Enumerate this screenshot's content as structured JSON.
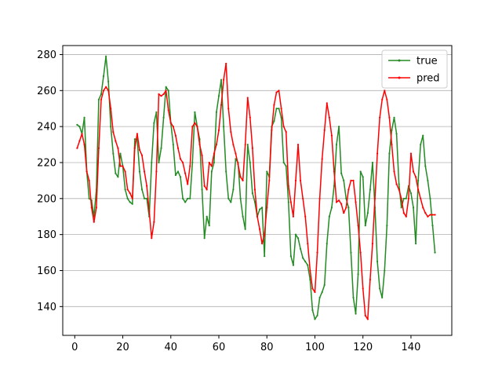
{
  "chart_data": {
    "type": "line",
    "title": "",
    "xlabel": "",
    "ylabel": "",
    "xlim": [
      -5,
      157
    ],
    "ylim": [
      124,
      285
    ],
    "xticks": [
      0,
      20,
      40,
      60,
      80,
      100,
      120,
      140
    ],
    "yticks": [
      140,
      160,
      180,
      200,
      220,
      240,
      260,
      280
    ],
    "grid": "horizontal",
    "legend_position": "upper right",
    "series": [
      {
        "name": "true",
        "color": "#228B22",
        "x": [
          1,
          2,
          3,
          4,
          5,
          6,
          7,
          8,
          9,
          10,
          11,
          12,
          13,
          14,
          15,
          16,
          17,
          18,
          19,
          20,
          21,
          22,
          23,
          24,
          25,
          26,
          27,
          28,
          29,
          30,
          31,
          32,
          33,
          34,
          35,
          36,
          37,
          38,
          39,
          40,
          41,
          42,
          43,
          44,
          45,
          46,
          47,
          48,
          49,
          50,
          51,
          52,
          53,
          54,
          55,
          56,
          57,
          58,
          59,
          60,
          61,
          62,
          63,
          64,
          65,
          66,
          67,
          68,
          69,
          70,
          71,
          72,
          73,
          74,
          75,
          76,
          77,
          78,
          79,
          80,
          81,
          82,
          83,
          84,
          85,
          86,
          87,
          88,
          89,
          90,
          91,
          92,
          93,
          94,
          95,
          96,
          97,
          98,
          99,
          100,
          101,
          102,
          103,
          104,
          105,
          106,
          107,
          108,
          109,
          110,
          111,
          112,
          113,
          114,
          115,
          116,
          117,
          118,
          119,
          120,
          121,
          122,
          123,
          124,
          125,
          126,
          127,
          128,
          129,
          130,
          131,
          132,
          133,
          134,
          135,
          136,
          137,
          138,
          139,
          140,
          141,
          142,
          143,
          144,
          145,
          146,
          147,
          148,
          149,
          150
        ],
        "values": [
          241,
          240,
          236,
          245,
          215,
          200,
          199,
          190,
          205,
          255,
          258,
          268,
          279,
          265,
          240,
          225,
          214,
          212,
          225,
          218,
          205,
          200,
          198,
          197,
          233,
          233,
          215,
          205,
          200,
          200,
          190,
          220,
          242,
          248,
          220,
          228,
          245,
          262,
          260,
          242,
          230,
          213,
          215,
          212,
          200,
          198,
          200,
          200,
          220,
          248,
          240,
          233,
          205,
          178,
          190,
          185,
          215,
          220,
          248,
          257,
          266,
          240,
          215,
          200,
          198,
          205,
          222,
          220,
          200,
          190,
          183,
          230,
          220,
          203,
          198,
          190,
          194,
          195,
          168,
          215,
          212,
          240,
          243,
          250,
          250,
          245,
          220,
          218,
          198,
          168,
          163,
          180,
          178,
          172,
          167,
          165,
          163,
          155,
          138,
          133,
          135,
          145,
          148,
          152,
          175,
          190,
          195,
          207,
          230,
          240,
          214,
          210,
          200,
          195,
          170,
          145,
          136,
          158,
          215,
          212,
          185,
          192,
          205,
          220,
          195,
          165,
          150,
          145,
          160,
          185,
          225,
          238,
          245,
          236,
          208,
          195,
          200,
          200,
          207,
          203,
          195,
          175,
          210,
          230,
          235,
          218,
          210,
          200,
          185,
          170
        ]
      },
      {
        "name": "pred",
        "color": "#ff0000",
        "x": [
          1,
          2,
          3,
          4,
          5,
          6,
          7,
          8,
          9,
          10,
          11,
          12,
          13,
          14,
          15,
          16,
          17,
          18,
          19,
          20,
          21,
          22,
          23,
          24,
          25,
          26,
          27,
          28,
          29,
          30,
          31,
          32,
          33,
          34,
          35,
          36,
          37,
          38,
          39,
          40,
          41,
          42,
          43,
          44,
          45,
          46,
          47,
          48,
          49,
          50,
          51,
          52,
          53,
          54,
          55,
          56,
          57,
          58,
          59,
          60,
          61,
          62,
          63,
          64,
          65,
          66,
          67,
          68,
          69,
          70,
          71,
          72,
          73,
          74,
          75,
          76,
          77,
          78,
          79,
          80,
          81,
          82,
          83,
          84,
          85,
          86,
          87,
          88,
          89,
          90,
          91,
          92,
          93,
          94,
          95,
          96,
          97,
          98,
          99,
          100,
          101,
          102,
          103,
          104,
          105,
          106,
          107,
          108,
          109,
          110,
          111,
          112,
          113,
          114,
          115,
          116,
          117,
          118,
          119,
          120,
          121,
          122,
          123,
          124,
          125,
          126,
          127,
          128,
          129,
          130,
          131,
          132,
          133,
          134,
          135,
          136,
          137,
          138,
          139,
          140,
          141,
          142,
          143,
          144,
          145,
          146,
          147,
          148,
          149,
          150
        ],
        "values": [
          228,
          232,
          236,
          230,
          215,
          210,
          195,
          187,
          195,
          228,
          255,
          260,
          262,
          260,
          250,
          237,
          232,
          228,
          218,
          218,
          215,
          205,
          203,
          200,
          228,
          236,
          227,
          224,
          215,
          207,
          193,
          178,
          187,
          215,
          258,
          257,
          258,
          260,
          249,
          242,
          240,
          235,
          228,
          222,
          220,
          214,
          208,
          218,
          240,
          242,
          240,
          230,
          224,
          207,
          205,
          220,
          218,
          225,
          230,
          238,
          252,
          266,
          275,
          250,
          237,
          230,
          225,
          219,
          212,
          210,
          230,
          256,
          245,
          228,
          205,
          190,
          183,
          175,
          180,
          195,
          210,
          238,
          252,
          259,
          260,
          250,
          240,
          237,
          207,
          198,
          190,
          210,
          230,
          210,
          200,
          190,
          175,
          160,
          150,
          148,
          170,
          200,
          222,
          238,
          253,
          245,
          235,
          215,
          198,
          199,
          197,
          192,
          195,
          205,
          210,
          210,
          198,
          185,
          170,
          150,
          135,
          133,
          155,
          175,
          200,
          225,
          245,
          255,
          260,
          255,
          245,
          230,
          215,
          208,
          205,
          200,
          192,
          190,
          200,
          225,
          215,
          212,
          205,
          200,
          195,
          192,
          190,
          191,
          191,
          191
        ]
      }
    ]
  }
}
